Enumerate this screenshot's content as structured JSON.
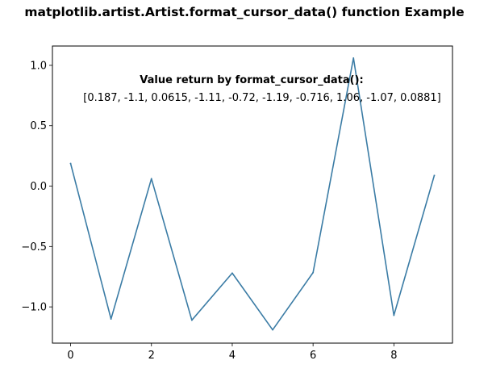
{
  "chart_data": {
    "type": "line",
    "title": "matplotlib.artist.Artist.format_cursor_data() function Example",
    "x": [
      0,
      1,
      2,
      3,
      4,
      5,
      6,
      7,
      8,
      9
    ],
    "series": [
      {
        "values": [
          0.187,
          -1.1,
          0.0615,
          -1.11,
          -0.72,
          -1.19,
          -0.716,
          1.06,
          -1.07,
          0.0881
        ],
        "color": "#3b7ca5"
      }
    ],
    "xlim": [
      -0.45,
      9.45
    ],
    "ylim": [
      -1.3,
      1.16
    ],
    "xticks": [
      0,
      2,
      4,
      6,
      8
    ],
    "xtick_labels": [
      "0",
      "2",
      "4",
      "6",
      "8"
    ],
    "yticks": [
      -1.0,
      -0.5,
      0.0,
      0.5,
      1.0
    ],
    "ytick_labels": [
      "−1.0",
      "−0.5",
      "0.0",
      "0.5",
      "1.0"
    ],
    "grid": false,
    "annotation_heading": "Value return by format_cursor_data():",
    "annotation_values": "[0.187, -1.1, 0.0615, -1.11, -0.72, -1.19, -0.716, 1.06, -1.07, 0.0881]"
  }
}
